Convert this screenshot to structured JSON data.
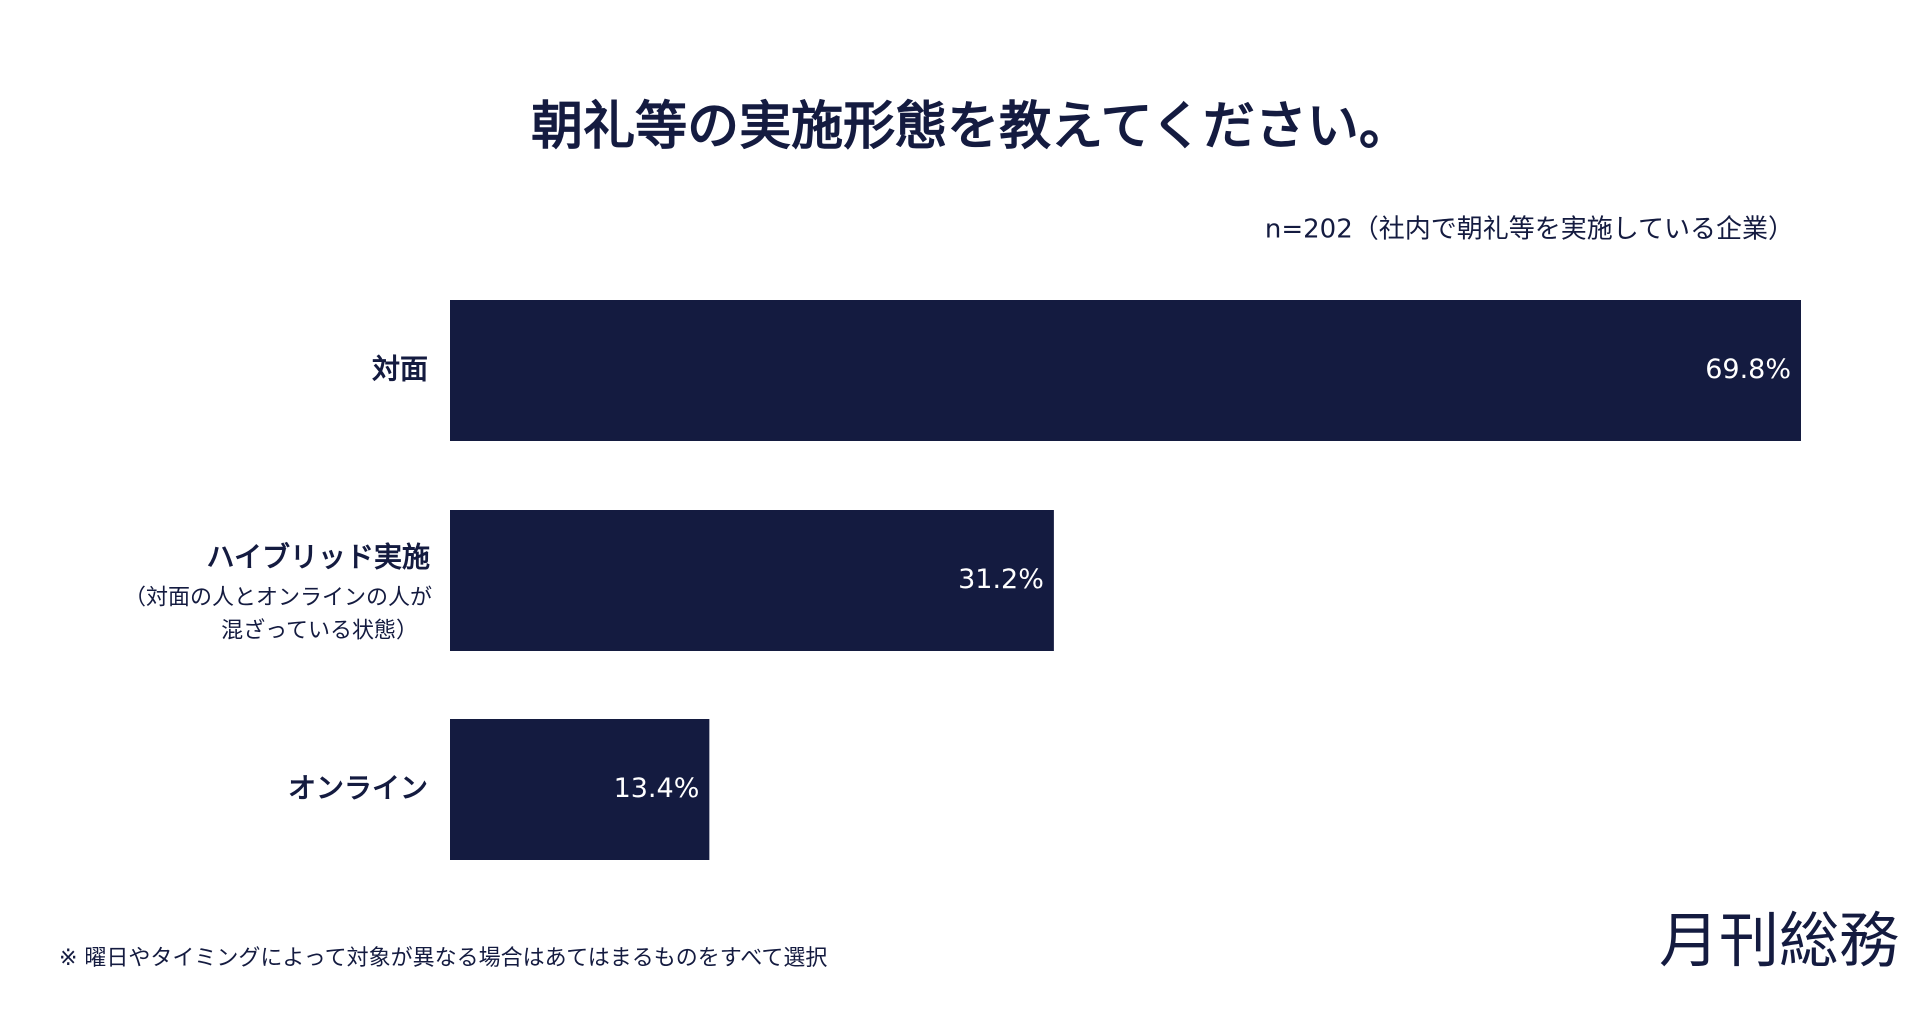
{
  "chart_data": {
    "type": "hbar",
    "title": "朝礼等の実施形態を教えてください。",
    "subtitle": "n=202（社内で朝礼等を実施している企業）",
    "categories": [
      "対面",
      "ハイブリッド実施",
      "オンライン"
    ],
    "category_notes": [
      null,
      [
        "（対面の人とオンラインの人が",
        "混ざっている状態）"
      ],
      null
    ],
    "values": [
      69.8,
      31.2,
      13.4
    ],
    "value_labels": [
      "69.8%",
      "31.2%",
      "13.4%"
    ],
    "color": "#141b40",
    "footnote": "※ 曜日やタイミングによって対象が異なる場合はあてはまるものをすべて選択",
    "logo": "月刊総務"
  }
}
